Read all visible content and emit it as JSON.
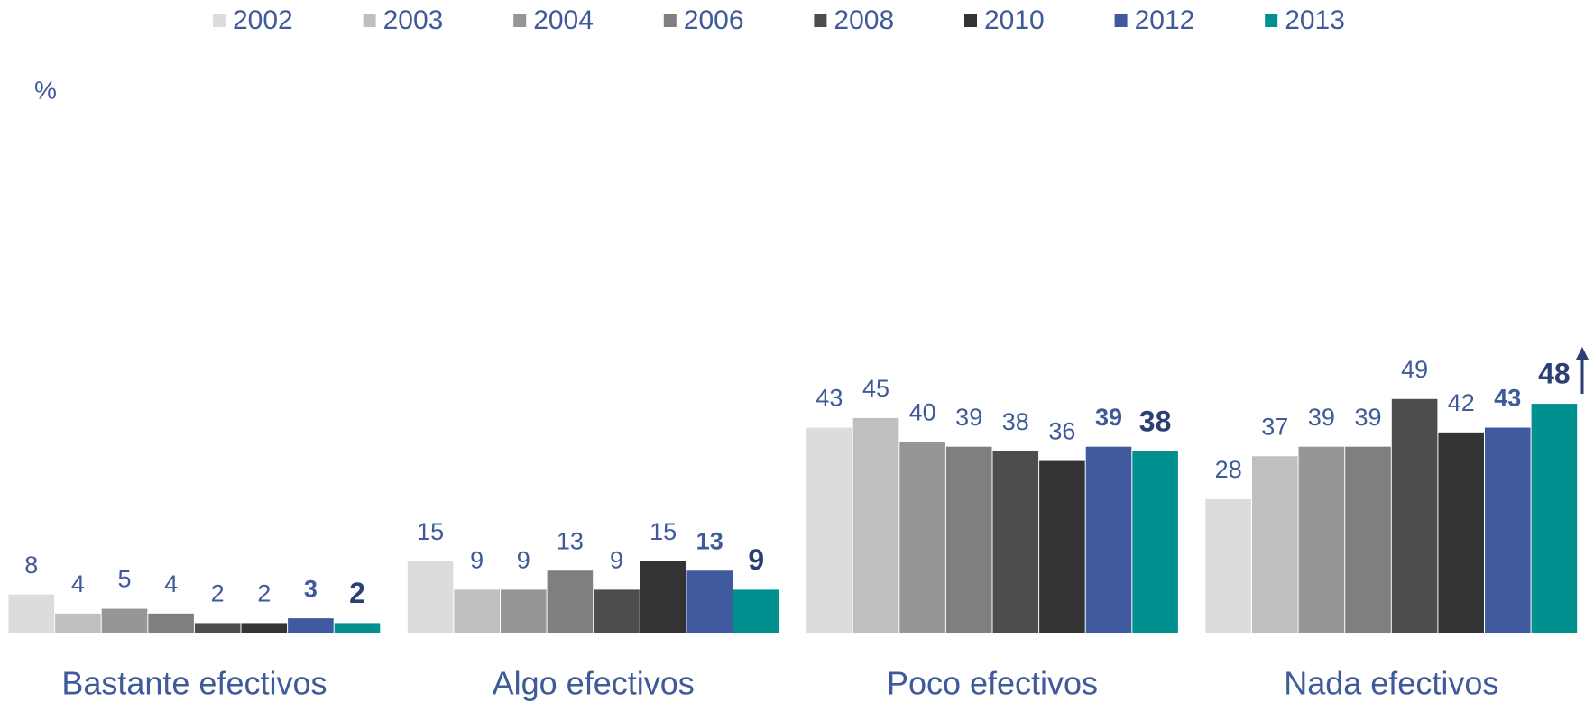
{
  "chart_data": {
    "type": "bar",
    "y_label": "%",
    "categories": [
      "Bastante efectivos",
      "Algo efectivos",
      "Poco efectivos",
      "Nada efectivos"
    ],
    "series": [
      {
        "name": "2002",
        "color": "#dcdcdc",
        "values": [
          8,
          15,
          43,
          28
        ]
      },
      {
        "name": "2003",
        "color": "#bfbfbf",
        "values": [
          4,
          9,
          45,
          37
        ]
      },
      {
        "name": "2004",
        "color": "#969696",
        "values": [
          5,
          9,
          40,
          39
        ]
      },
      {
        "name": "2006",
        "color": "#7f7f7f",
        "values": [
          4,
          13,
          39,
          39
        ]
      },
      {
        "name": "2008",
        "color": "#4d4d4d",
        "values": [
          2,
          9,
          38,
          49
        ]
      },
      {
        "name": "2010",
        "color": "#333333",
        "values": [
          2,
          15,
          36,
          42
        ]
      },
      {
        "name": "2012",
        "color": "#3f5a9e",
        "values": [
          3,
          13,
          39,
          43
        ]
      },
      {
        "name": "2013",
        "color": "#009090",
        "values": [
          2,
          9,
          38,
          48
        ]
      }
    ],
    "ylim": [
      0,
      100
    ]
  }
}
